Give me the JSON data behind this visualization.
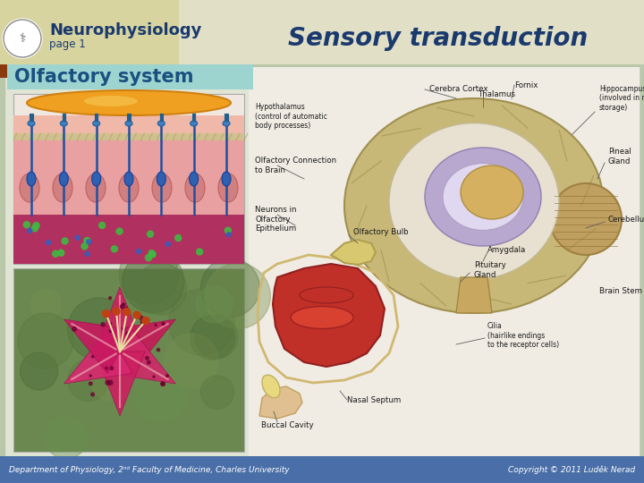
{
  "title": "Sensory transduction",
  "subtitle": "Neurophysiology",
  "page_label": "page 1",
  "section_label": "Olfactory system",
  "footer_left": "Department of Physiology, 2ⁿᵈ Faculty of Medicine, Charles University",
  "footer_right": "Copyright © 2011 Luděk Nerad",
  "bg_outer": "#b8c8a8",
  "header_bg": "#d8d4a0",
  "header_brown": "#8b3a10",
  "title_color": "#1a3a6e",
  "section_bg": "#9ed4d0",
  "section_color": "#1a5080",
  "footer_bg": "#4a6fa8",
  "footer_text_color": "#ffffff",
  "main_bg": "#dce4cc",
  "content_bg": "#e8ecde",
  "fig_width": 7.2,
  "fig_height": 5.4
}
